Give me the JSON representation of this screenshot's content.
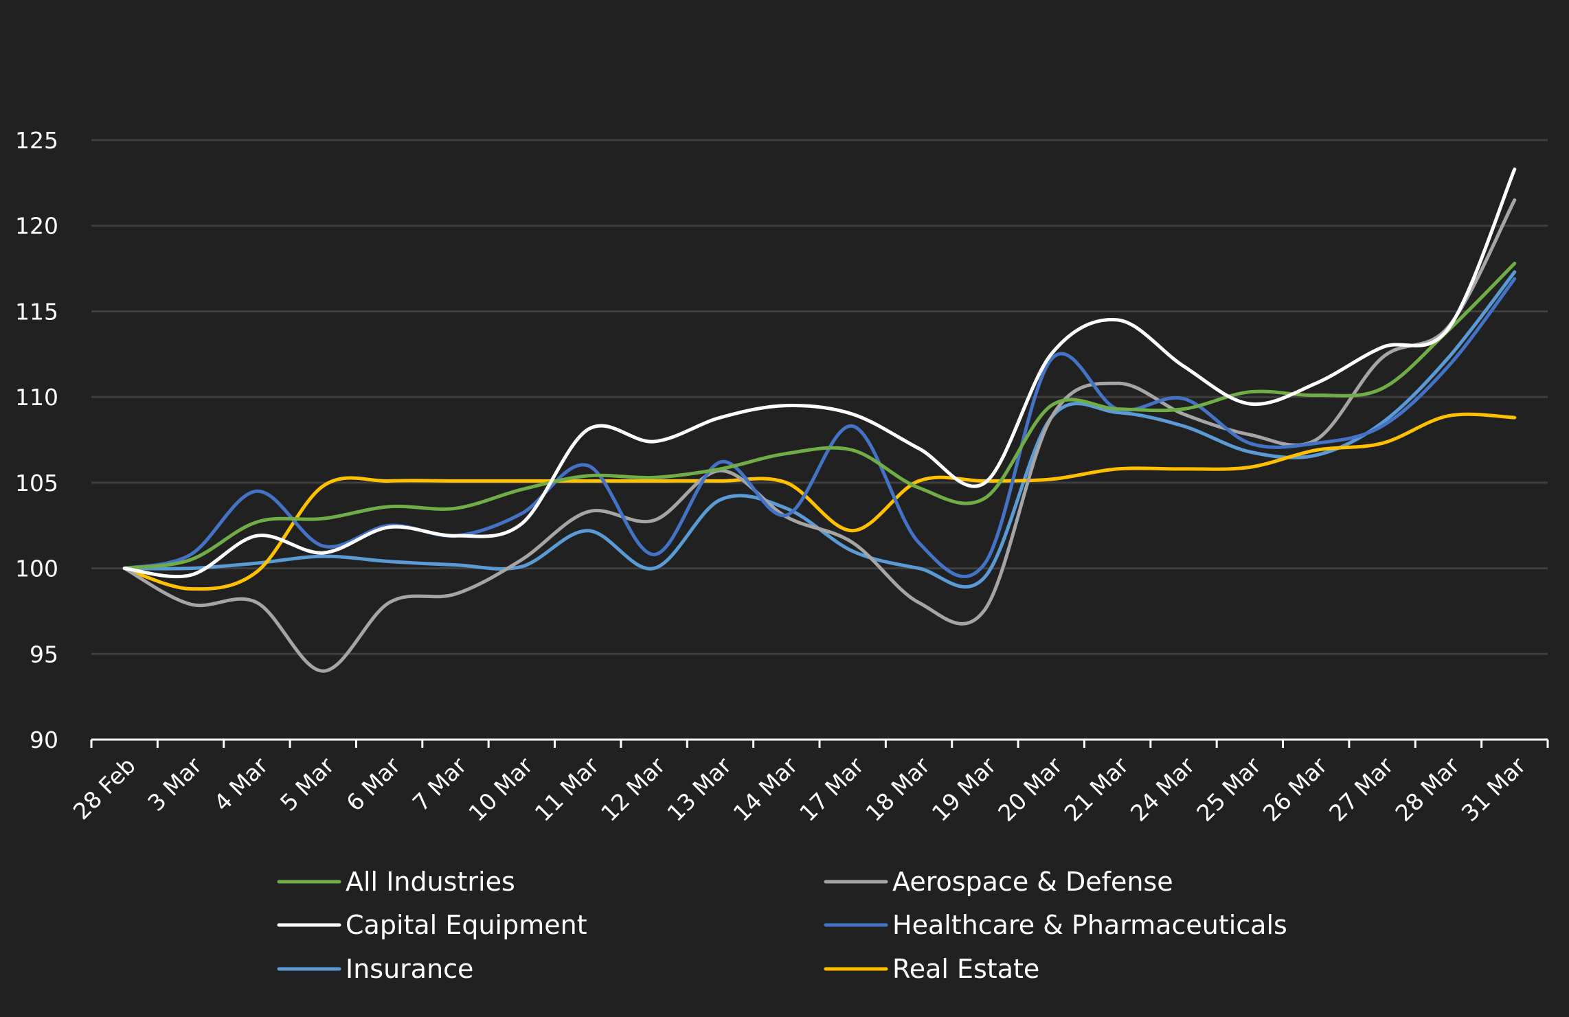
{
  "chart_data": {
    "type": "line",
    "title": "",
    "xlabel": "",
    "ylabel": "",
    "ylim": [
      90,
      125
    ],
    "yticks": [
      90,
      95,
      100,
      105,
      110,
      115,
      120,
      125
    ],
    "grid": true,
    "legend_position": "bottom",
    "categories": [
      "28 Feb",
      "3 Mar",
      "4 Mar",
      "5 Mar",
      "6 Mar",
      "7 Mar",
      "10 Mar",
      "11 Mar",
      "12 Mar",
      "13 Mar",
      "14 Mar",
      "17 Mar",
      "18 Mar",
      "19 Mar",
      "20 Mar",
      "21 Mar",
      "24 Mar",
      "25 Mar",
      "26 Mar",
      "27 Mar",
      "28 Mar",
      "31 Mar"
    ],
    "series": [
      {
        "name": "All Industries",
        "color": "#70ad47",
        "values": [
          100,
          100.5,
          102.7,
          102.9,
          103.6,
          103.5,
          104.6,
          105.4,
          105.3,
          105.8,
          106.7,
          106.9,
          104.7,
          104.1,
          109.5,
          109.3,
          109.3,
          110.3,
          110.1,
          110.5,
          113.9,
          117.8
        ]
      },
      {
        "name": "Aerospace & Defense",
        "color": "#a5a5a5",
        "values": [
          100,
          97.9,
          98.0,
          94.0,
          98.0,
          98.5,
          100.5,
          103.3,
          102.8,
          105.7,
          103.0,
          101.5,
          98.0,
          97.6,
          108.8,
          110.8,
          109.0,
          107.8,
          107.5,
          112.3,
          114.1,
          121.5
        ]
      },
      {
        "name": "Capital Equipment",
        "color": "#ffffff",
        "values": [
          100,
          99.6,
          101.9,
          100.9,
          102.4,
          101.9,
          102.6,
          108.1,
          107.4,
          108.8,
          109.5,
          109.0,
          107.0,
          105.0,
          112.5,
          114.5,
          111.8,
          109.6,
          110.8,
          112.9,
          114.0,
          123.3
        ]
      },
      {
        "name": "Healthcare & Pharmaceuticals",
        "color": "#4472c4",
        "values": [
          100,
          100.8,
          104.5,
          101.3,
          102.5,
          101.9,
          103.2,
          106.0,
          100.8,
          106.2,
          103.1,
          108.3,
          101.5,
          100.3,
          112.2,
          109.3,
          109.9,
          107.3,
          107.3,
          108.3,
          111.8,
          116.9
        ]
      },
      {
        "name": "Insurance",
        "color": "#5b9bd5",
        "values": [
          100,
          100.0,
          100.3,
          100.7,
          100.4,
          100.2,
          100.1,
          102.2,
          100.0,
          104.0,
          103.5,
          101.0,
          100.0,
          99.5,
          108.8,
          109.1,
          108.3,
          106.8,
          106.6,
          108.5,
          112.3,
          117.3
        ]
      },
      {
        "name": "Real Estate",
        "color": "#ffc000",
        "values": [
          100,
          98.8,
          99.8,
          104.8,
          105.1,
          105.1,
          105.1,
          105.1,
          105.1,
          105.1,
          105.0,
          102.2,
          105.1,
          105.1,
          105.2,
          105.8,
          105.8,
          105.9,
          106.9,
          107.3,
          108.9,
          108.8
        ]
      }
    ]
  }
}
